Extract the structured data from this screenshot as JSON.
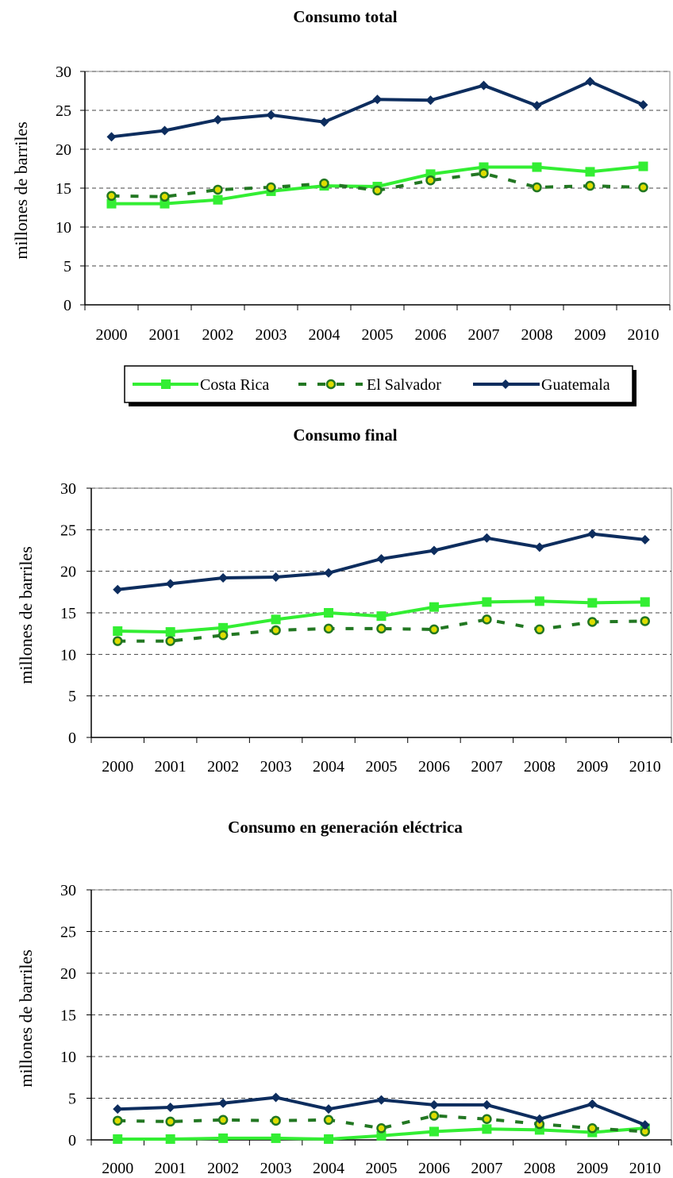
{
  "chart_data": [
    {
      "type": "line",
      "title": "Consumo total",
      "ylabel": "millones de barriles",
      "xlabel": "",
      "categories": [
        "2000",
        "2001",
        "2002",
        "2003",
        "2004",
        "2005",
        "2006",
        "2007",
        "2008",
        "2009",
        "2010"
      ],
      "ylim": [
        0,
        30
      ],
      "yticks": [
        "0",
        "5",
        "10",
        "15",
        "20",
        "25",
        "30"
      ],
      "grid": true,
      "series": [
        {
          "name": "Costa Rica",
          "values": [
            13.0,
            13.0,
            13.5,
            14.6,
            15.3,
            15.2,
            16.8,
            17.7,
            17.7,
            17.1,
            17.8
          ]
        },
        {
          "name": "El Salvador",
          "values": [
            14.0,
            13.9,
            14.8,
            15.1,
            15.6,
            14.7,
            16.0,
            16.9,
            15.1,
            15.3,
            15.1
          ]
        },
        {
          "name": "Guatemala",
          "values": [
            21.6,
            22.4,
            23.8,
            24.4,
            23.5,
            26.4,
            26.3,
            28.2,
            25.6,
            28.7,
            25.7
          ]
        }
      ]
    },
    {
      "type": "line",
      "title": "Consumo final",
      "ylabel": "millones de barriles",
      "xlabel": "",
      "categories": [
        "2000",
        "2001",
        "2002",
        "2003",
        "2004",
        "2005",
        "2006",
        "2007",
        "2008",
        "2009",
        "2010"
      ],
      "ylim": [
        0,
        30
      ],
      "yticks": [
        "0",
        "5",
        "10",
        "15",
        "20",
        "25",
        "30"
      ],
      "grid": true,
      "series": [
        {
          "name": "Costa Rica",
          "values": [
            12.8,
            12.7,
            13.2,
            14.2,
            15.0,
            14.6,
            15.7,
            16.3,
            16.4,
            16.2,
            16.3
          ]
        },
        {
          "name": "El Salvador",
          "values": [
            11.6,
            11.6,
            12.3,
            12.9,
            13.1,
            13.1,
            13.0,
            14.2,
            13.0,
            13.9,
            14.0
          ]
        },
        {
          "name": "Guatemala",
          "values": [
            17.8,
            18.5,
            19.2,
            19.3,
            19.8,
            21.5,
            22.5,
            24.0,
            22.9,
            24.5,
            23.8
          ]
        }
      ]
    },
    {
      "type": "line",
      "title": "Consumo en generación eléctrica",
      "ylabel": "millones de barriles",
      "xlabel": "",
      "categories": [
        "2000",
        "2001",
        "2002",
        "2003",
        "2004",
        "2005",
        "2006",
        "2007",
        "2008",
        "2009",
        "2010"
      ],
      "ylim": [
        0,
        30
      ],
      "yticks": [
        "0",
        "5",
        "10",
        "15",
        "20",
        "25",
        "30"
      ],
      "grid": true,
      "series": [
        {
          "name": "Costa Rica",
          "values": [
            0.1,
            0.1,
            0.2,
            0.2,
            0.1,
            0.5,
            1.0,
            1.3,
            1.2,
            0.9,
            1.4
          ]
        },
        {
          "name": "El Salvador",
          "values": [
            2.3,
            2.2,
            2.4,
            2.3,
            2.4,
            1.4,
            2.9,
            2.5,
            1.9,
            1.4,
            1.0
          ]
        },
        {
          "name": "Guatemala",
          "values": [
            3.7,
            3.9,
            4.4,
            5.1,
            3.7,
            4.8,
            4.2,
            4.2,
            2.5,
            4.3,
            1.8
          ]
        }
      ]
    }
  ],
  "legend": {
    "items": [
      "Costa Rica",
      "El Salvador",
      "Guatemala"
    ]
  },
  "colors": {
    "costa_rica": "#33ee33",
    "el_salvador_line": "#227722",
    "el_salvador_fill": "#dddd00",
    "guatemala": "#0d2d5e",
    "grid": "#444444"
  }
}
